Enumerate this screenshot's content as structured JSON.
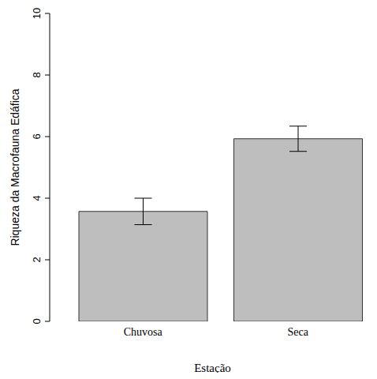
{
  "chart_data": {
    "type": "bar",
    "categories": [
      "Chuvosa",
      "Seca"
    ],
    "values": [
      3.57,
      5.93
    ],
    "errors": [
      0.43,
      0.41
    ],
    "color": "#bebebe",
    "x_label": "Estação",
    "y_label": "Riqueza da Macrofauna Edáfica",
    "ylim": [
      0,
      10
    ],
    "yticks": [
      0,
      2,
      4,
      6,
      8,
      10
    ],
    "grid": false
  }
}
